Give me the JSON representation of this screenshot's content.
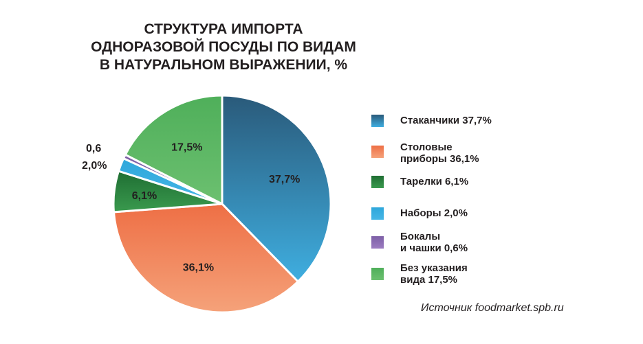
{
  "title_lines": [
    "СТРУКТУРА ИМПОРТА",
    "ОДНОРАЗОВОЙ ПОСУДЫ ПО ВИДАМ",
    "В НАТУРАЛЬНОМ ВЫРАЖЕНИИ, %"
  ],
  "source": "Источник foodmarket.spb.ru",
  "chart_data": {
    "type": "pie",
    "title": "СТРУКТУРА ИМПОРТА ОДНОРАЗОВОЙ ПОСУДЫ ПО ВИДАМ В НАТУРАЛЬНОМ ВЫРАЖЕНИИ, %",
    "slices": [
      {
        "value": 37.7,
        "label": "37,7%",
        "legend_lines": [
          "Стаканчики  37,7%"
        ],
        "color_top": "#2a5a7a",
        "color_bottom": "#3faee0"
      },
      {
        "value": 36.1,
        "label": "36,1%",
        "legend_lines": [
          "Столовые",
          "приборы 36,1%"
        ],
        "color_top": "#ee6f45",
        "color_bottom": "#f5a27a"
      },
      {
        "value": 6.1,
        "label": "6,1%",
        "legend_lines": [
          "Тарелки 6,1%"
        ],
        "color_top": "#1f6e33",
        "color_bottom": "#3a9a4e"
      },
      {
        "value": 2.0,
        "label": "2,0%",
        "legend_lines": [
          "Наборы 2,0%"
        ],
        "color_top": "#2ea7db",
        "color_bottom": "#46b6e6"
      },
      {
        "value": 0.6,
        "label": "0,6",
        "legend_lines": [
          "Бокалы",
          "и чашки 0,6%"
        ],
        "color_top": "#7d5fa6",
        "color_bottom": "#9c7cc1"
      },
      {
        "value": 17.5,
        "label": "17,5%",
        "legend_lines": [
          "Без указания",
          "вида   17,5%"
        ],
        "color_top": "#4faf5a",
        "color_bottom": "#6cc070"
      }
    ]
  }
}
